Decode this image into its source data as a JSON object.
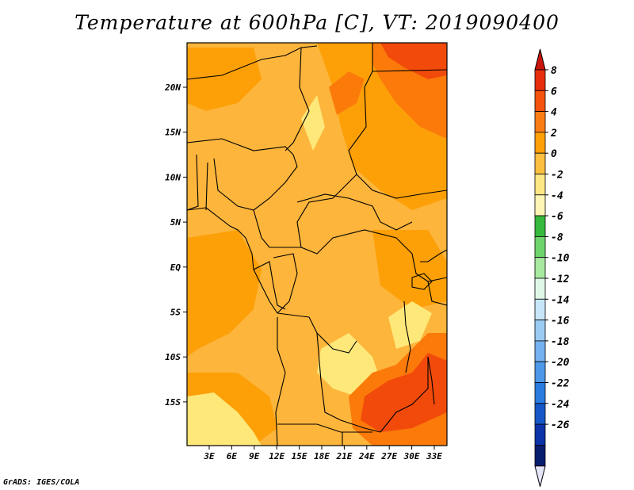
{
  "title": "Temperature at 600hPa [C], VT: 2019090400",
  "credit": "GrADS: IGES/COLA",
  "map": {
    "lat_labels": [
      "20N",
      "15N",
      "10N",
      "5N",
      "EQ",
      "5S",
      "10S",
      "15S"
    ],
    "lon_labels": [
      "3E",
      "6E",
      "9E",
      "12E",
      "15E",
      "18E",
      "21E",
      "24E",
      "27E",
      "30E",
      "33E"
    ],
    "field_colors": {
      "base": "#fdb53b",
      "warm2": "#fda008",
      "warm4": "#fb7a0a",
      "warm6": "#f24a0a",
      "cool": "#fee87a"
    }
  },
  "colorbar": {
    "labels": [
      "8",
      "6",
      "4",
      "2",
      "0",
      "-2",
      "-4",
      "-6",
      "-8",
      "-10",
      "-12",
      "-14",
      "-16",
      "-18",
      "-20",
      "-22",
      "-24",
      "-26"
    ],
    "colors": [
      "#e62d0c",
      "#f5520f",
      "#fa7d14",
      "#fda008",
      "#fdbf3f",
      "#fee685",
      "#fff5b4",
      "#37b93c",
      "#6fd46b",
      "#a8eaa0",
      "#dff8e6",
      "#c7e6f8",
      "#9bcbf3",
      "#74b2f0",
      "#4e98e8",
      "#2a7ce0",
      "#1657c8",
      "#0a34a8",
      "#071d6e"
    ],
    "top_triangle_color": "#c8140a",
    "bottom_triangle_color": "#e6e6fa"
  }
}
